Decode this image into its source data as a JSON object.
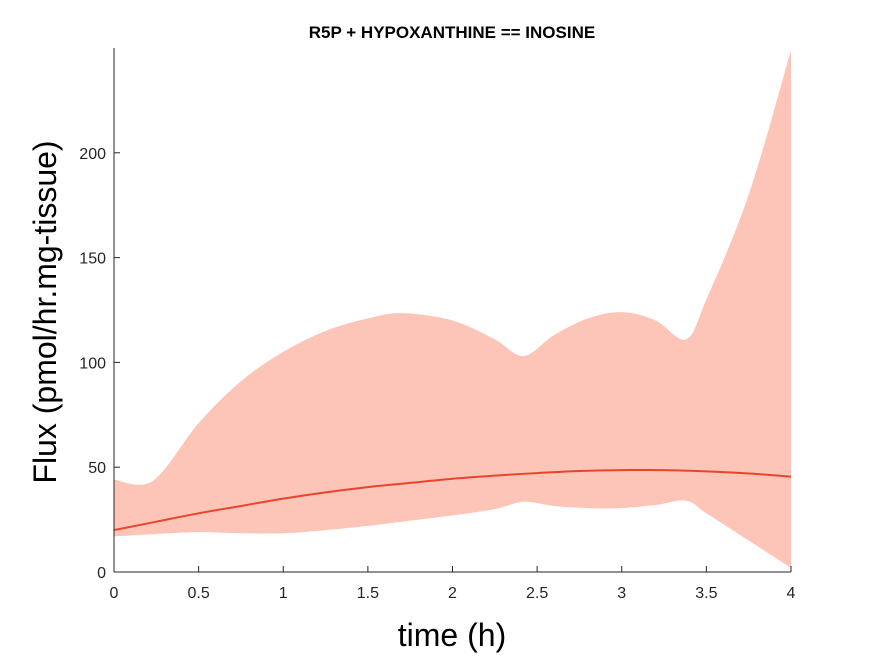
{
  "chart_data": {
    "type": "area",
    "title": "R5P + HYPOXANTHINE == INOSINE",
    "xlabel": "time (h)",
    "ylabel": "Flux (pmol/hr.mg-tissue)",
    "xlim": [
      0,
      4
    ],
    "ylim": [
      0,
      250
    ],
    "xticks": [
      0,
      0.5,
      1,
      1.5,
      2,
      2.5,
      3,
      3.5,
      4
    ],
    "xtick_labels": [
      "0",
      "0.5",
      "1",
      "1.5",
      "2",
      "2.5",
      "3",
      "3.5",
      "4"
    ],
    "yticks": [
      0,
      50,
      100,
      150,
      200
    ],
    "ytick_labels": [
      "0",
      "50",
      "100",
      "150",
      "200"
    ],
    "grid": false,
    "colors": {
      "band": "#fdc4b8",
      "line": "#e8452c"
    },
    "series": [
      {
        "kind": "line",
        "x": [
          0,
          0.25,
          0.5,
          0.75,
          1,
          1.25,
          1.5,
          1.75,
          2,
          2.25,
          2.5,
          2.75,
          3,
          3.25,
          3.5,
          3.75,
          4
        ],
        "y": [
          20,
          24,
          28,
          31.5,
          35,
          38,
          40.5,
          42.5,
          44.5,
          46,
          47.2,
          48.2,
          48.6,
          48.6,
          48,
          47,
          45.5
        ]
      },
      {
        "kind": "band",
        "x": [
          0,
          0.23,
          0.5,
          0.75,
          1,
          1.25,
          1.5,
          1.7,
          2,
          2.25,
          2.42,
          2.6,
          2.8,
          3,
          3.2,
          3.38,
          3.5,
          3.75,
          4
        ],
        "upper": [
          44,
          43.5,
          71,
          91,
          105,
          115,
          121,
          123.5,
          120,
          111,
          103,
          113,
          121,
          124,
          120,
          111,
          130,
          180,
          249
        ],
        "lower": [
          17,
          18,
          19,
          18.5,
          18.5,
          20,
          22,
          24,
          27,
          30,
          33.5,
          31.5,
          30.5,
          30.5,
          32,
          34,
          28,
          15,
          2
        ]
      }
    ]
  }
}
